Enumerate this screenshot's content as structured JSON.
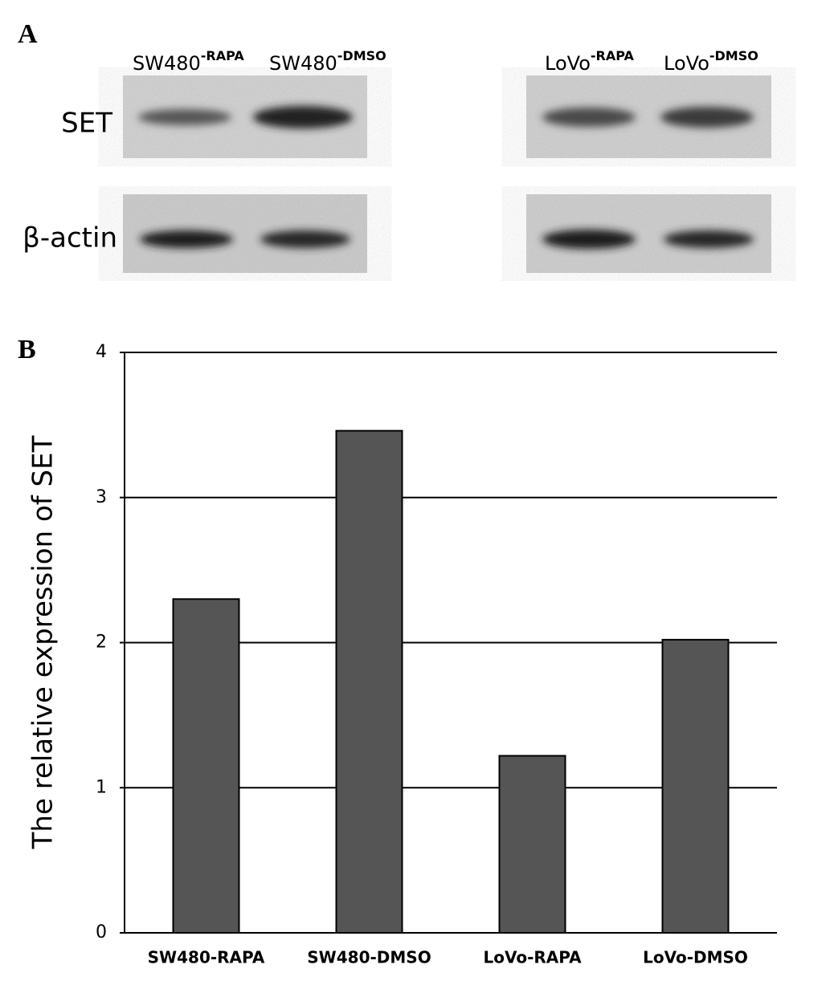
{
  "panel_a": {
    "label": "A",
    "lanes": [
      {
        "name": "SW480",
        "suffix": "-RAPA"
      },
      {
        "name": "SW480",
        "suffix": "-DMSO"
      },
      {
        "name": "LoVo",
        "suffix": "-RAPA"
      },
      {
        "name": "LoVo",
        "suffix": "-DMSO"
      }
    ],
    "rows": [
      "SET",
      "β-actin"
    ]
  },
  "chart_data": {
    "type": "bar",
    "panel_label": "B",
    "y_label": "The relative expression of SET",
    "categories": [
      "SW480-RAPA",
      "SW480-DMSO",
      "LoVo-RAPA",
      "LoVo-DMSO"
    ],
    "values": [
      2.3,
      3.46,
      1.22,
      2.02
    ],
    "color": "#555555",
    "ylim": [
      0,
      4
    ],
    "yticks": [
      0,
      1,
      2,
      3,
      4
    ],
    "grid": true
  }
}
